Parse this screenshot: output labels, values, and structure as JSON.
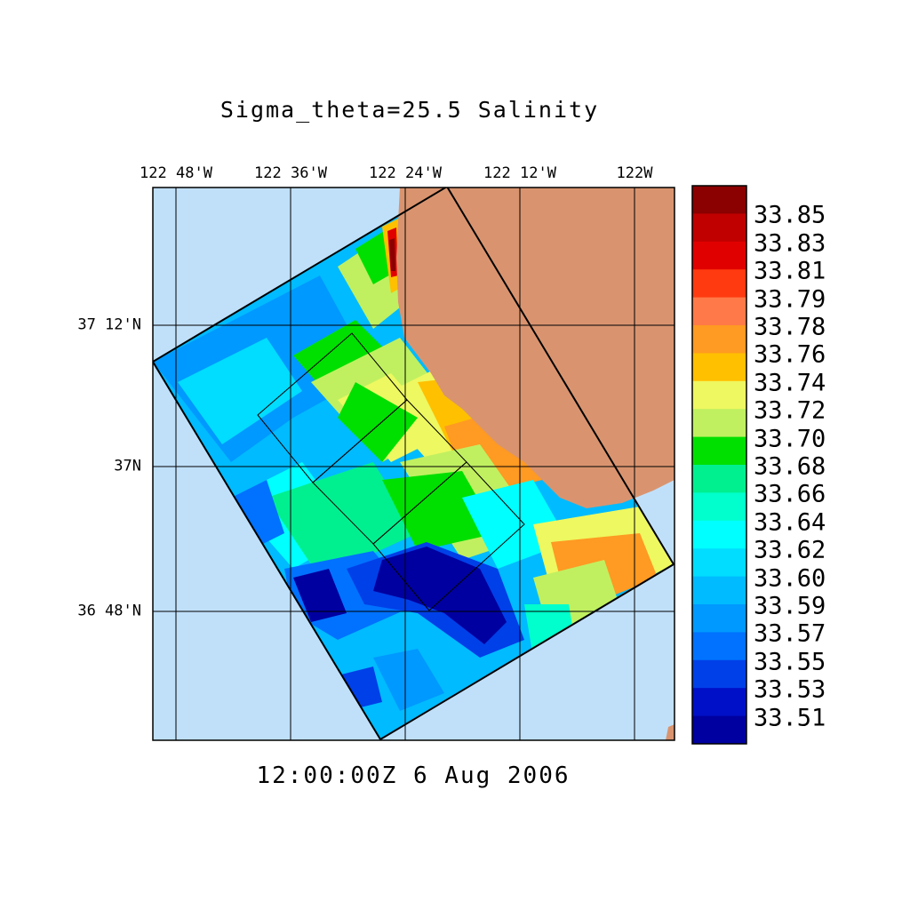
{
  "title": "Sigma_theta=25.5 Salinity",
  "timestamp": "12:00:00Z   6 Aug 2006",
  "lon_labels": [
    "122 48'W",
    "122 36'W",
    "122 24'W",
    "122 12'W",
    "122W"
  ],
  "lat_labels": [
    "37 12'N",
    "37N",
    "36 48'N"
  ],
  "colorbar": {
    "labels": [
      "33.85",
      "33.83",
      "33.81",
      "33.79",
      "33.78",
      "33.76",
      "33.74",
      "33.72",
      "33.70",
      "33.68",
      "33.66",
      "33.64",
      "33.62",
      "33.60",
      "33.59",
      "33.57",
      "33.55",
      "33.53",
      "33.51"
    ],
    "colors": [
      "#8b0000",
      "#c00000",
      "#e00000",
      "#ff3a10",
      "#ff7a48",
      "#ff9a22",
      "#ffc000",
      "#eef860",
      "#c0f060",
      "#00e000",
      "#00f090",
      "#00ffcc",
      "#00ffff",
      "#00ddff",
      "#00bbff",
      "#0099ff",
      "#0072ff",
      "#0040e8",
      "#0010c8",
      "#0000a0"
    ]
  },
  "colors": {
    "ocean": "#c0e0fa",
    "land": "#d9946f",
    "grid": "#000000"
  },
  "chart_data": {
    "type": "heatmap",
    "title": "Sigma_theta=25.5 Salinity",
    "xlabel": "",
    "ylabel": "",
    "x_ticks": [
      "122 48'W",
      "122 36'W",
      "122 24'W",
      "122 12'W",
      "122W"
    ],
    "y_ticks": [
      "37 12'N",
      "37N",
      "36 48'N"
    ],
    "colorbar_ticks": [
      33.85,
      33.83,
      33.81,
      33.79,
      33.78,
      33.76,
      33.74,
      33.72,
      33.7,
      33.68,
      33.66,
      33.64,
      33.62,
      33.6,
      33.59,
      33.57,
      33.55,
      33.53,
      33.51
    ],
    "colorbar_range": [
      33.5,
      33.86
    ],
    "grid": true
  }
}
